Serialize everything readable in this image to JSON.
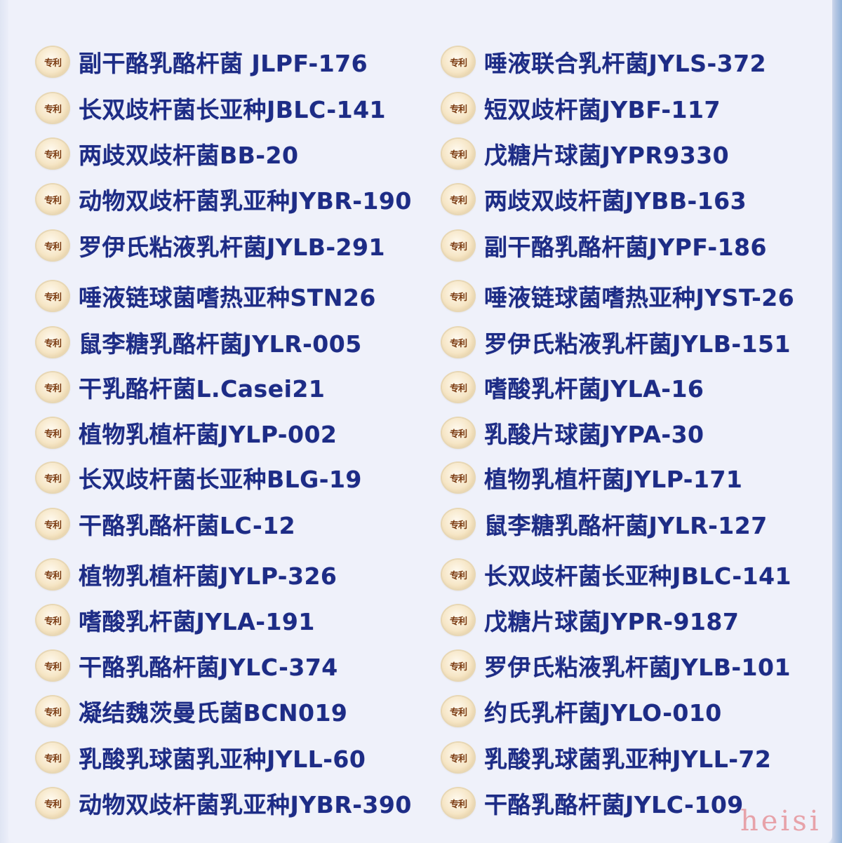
{
  "badge_text": "专利",
  "colors": {
    "text": "#1d2c86",
    "badge": "#f6e6c6",
    "background": "#eff1fa",
    "watermark": "#e7a2a9"
  },
  "left_column": [
    "副干酪乳酪杆菌 JLPF-176",
    "长双歧杆菌长亚种JBLC-141",
    "两歧双歧杆菌BB-20",
    "动物双歧杆菌乳亚种JYBR-190",
    "罗伊氏粘液乳杆菌JYLB-291",
    "唾液链球菌嗜热亚种STN26",
    "鼠李糖乳酪杆菌JYLR-005",
    "干乳酪杆菌L.Casei21",
    "植物乳植杆菌JYLP-002",
    "长双歧杆菌长亚种BLG-19",
    "干酪乳酪杆菌LC-12",
    "植物乳植杆菌JYLP-326",
    "嗜酸乳杆菌JYLA-191",
    "干酪乳酪杆菌JYLC-374",
    "凝结魏茨曼氏菌BCN019",
    "乳酸乳球菌乳亚种JYLL-60",
    "动物双歧杆菌乳亚种JYBR-390"
  ],
  "right_column": [
    "唾液联合乳杆菌JYLS-372",
    "短双歧杆菌JYBF-117",
    "戊糖片球菌JYPR9330",
    "两歧双歧杆菌JYBB-163",
    "副干酪乳酪杆菌JYPF-186",
    "唾液链球菌嗜热亚种JYST-26",
    "罗伊氏粘液乳杆菌JYLB-151",
    "嗜酸乳杆菌JYLA-16",
    "乳酸片球菌JYPA-30",
    "植物乳植杆菌JYLP-171",
    "鼠李糖乳酪杆菌JYLR-127",
    "长双歧杆菌长亚种JBLC-141",
    "戊糖片球菌JYPR-9187",
    "罗伊氏粘液乳杆菌JYLB-101",
    "约氏乳杆菌JYLO-010",
    "乳酸乳球菌乳亚种JYLL-72",
    "干酪乳酪杆菌JYLC-109"
  ],
  "watermark": "heisi"
}
